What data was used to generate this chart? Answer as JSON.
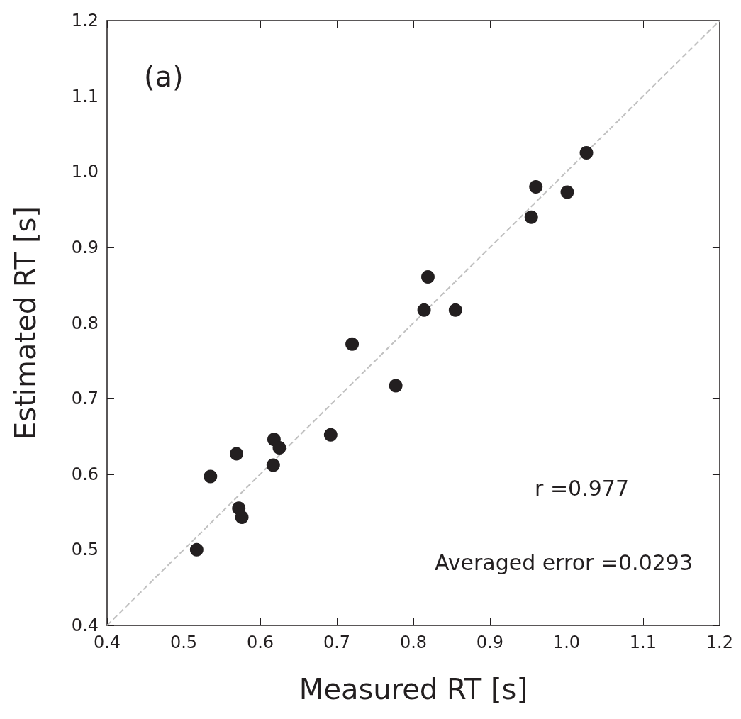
{
  "chart_data": {
    "type": "scatter",
    "xlabel": "Measured RT [s]",
    "ylabel": "Estimated RT [s]",
    "xlim": [
      0.4,
      1.2
    ],
    "ylim": [
      0.4,
      1.2
    ],
    "xticks": [
      0.4,
      0.5,
      0.6,
      0.7,
      0.8,
      0.9,
      {
        "value": 1,
        "label": "1.0"
      },
      1.1,
      1.2
    ],
    "yticks": [
      0.4,
      0.5,
      0.6,
      0.7,
      0.8,
      0.9,
      {
        "value": 1,
        "label": "1.0"
      },
      1.1,
      1.2
    ],
    "grid": false,
    "series": [
      {
        "marker": "circle",
        "color": "#231f20",
        "x": [
          0.517,
          0.535,
          0.569,
          0.572,
          0.576,
          0.617,
          0.618,
          0.625,
          0.692,
          0.72,
          0.777,
          0.814,
          0.819,
          0.855,
          0.954,
          0.96,
          1.001,
          1.026
        ],
        "values": [
          0.5,
          0.597,
          0.627,
          0.555,
          0.543,
          0.612,
          0.646,
          0.635,
          0.652,
          0.772,
          0.717,
          0.817,
          0.861,
          0.817,
          0.94,
          0.98,
          0.973,
          1.025
        ]
      },
      {
        "type": "line",
        "marker": "none",
        "color": "#c0c0c0",
        "line_style": "dashed",
        "x": [
          0.4,
          1.2
        ],
        "values": [
          0.4,
          1.2
        ]
      }
    ],
    "annotations": [
      "(a)",
      "r =0.977",
      "Averaged error =0.0293"
    ]
  }
}
